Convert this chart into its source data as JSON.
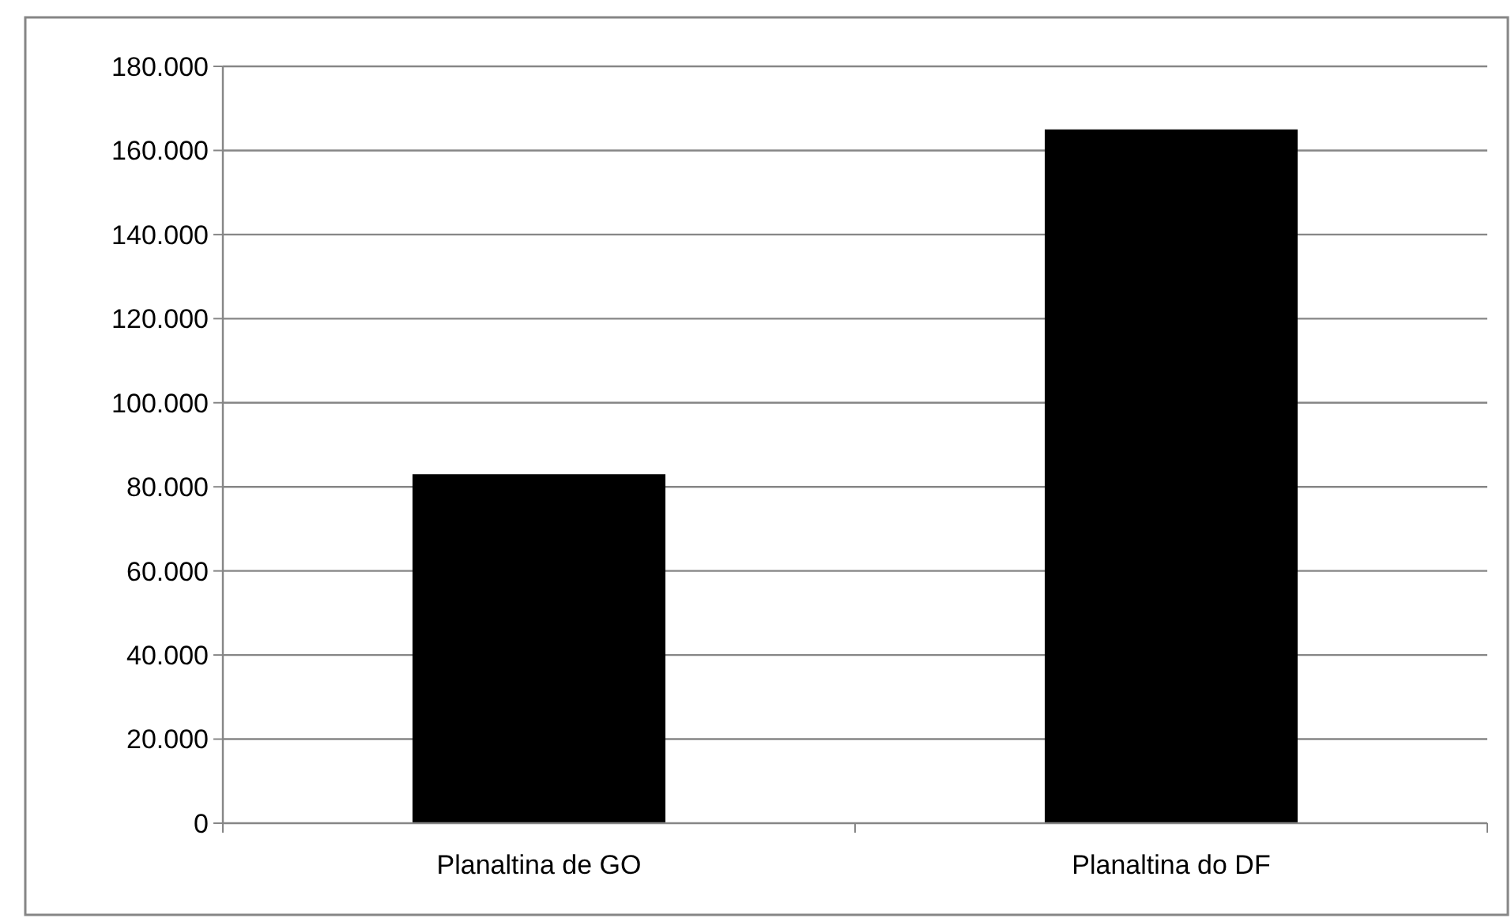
{
  "chart_data": {
    "type": "bar",
    "categories": [
      "Planaltina de GO",
      "Planaltina do DF"
    ],
    "values": [
      83000,
      165000
    ],
    "color": "#000000",
    "ylim": [
      0,
      180000
    ],
    "yticks": [
      0,
      {
        "value": 20000,
        "label": "20.000"
      },
      {
        "value": 40000,
        "label": "40.000"
      },
      {
        "value": 60000,
        "label": "60.000"
      },
      {
        "value": 80000,
        "label": "80.000"
      },
      {
        "value": 100000,
        "label": "100.000"
      },
      {
        "value": 120000,
        "label": "120.000"
      },
      {
        "value": 140000,
        "label": "140.000"
      },
      {
        "value": 160000,
        "label": "160.000"
      },
      {
        "value": 180000,
        "label": "180.000"
      }
    ],
    "grid": "y"
  }
}
